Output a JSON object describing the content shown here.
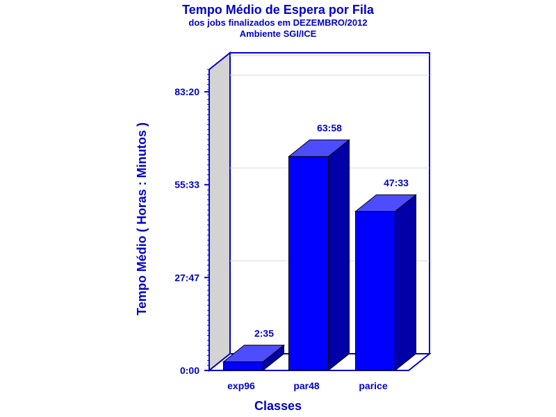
{
  "chart_data": {
    "type": "bar",
    "title": "Tempo Médio de Espera por Fila",
    "subtitle_lines": [
      "dos jobs finalizados em DEZEMBRO/2012",
      "Ambiente SGI/ICE"
    ],
    "xlabel": "Classes",
    "ylabel": "Tempo Médio ( Horas : Minutos )",
    "categories": [
      "exp96",
      "par48",
      "parice"
    ],
    "values": [
      155,
      3838,
      2853
    ],
    "value_labels": [
      "2:35",
      "63:58",
      "47:33"
    ],
    "ylim": [
      0,
      5400
    ],
    "yticks": [
      0,
      1667,
      3333,
      5000
    ],
    "ytick_labels": [
      "0:00",
      "27:47",
      "55:33",
      "83:20"
    ],
    "grid": true,
    "three_d": true,
    "colors": {
      "bar_front": "#0000ff",
      "bar_top": "#4d4dff",
      "bar_side": "#0000a6",
      "axis": "#0000cc",
      "side_wall": "#d3d3d3",
      "gridline": "#d8d8d8"
    }
  }
}
